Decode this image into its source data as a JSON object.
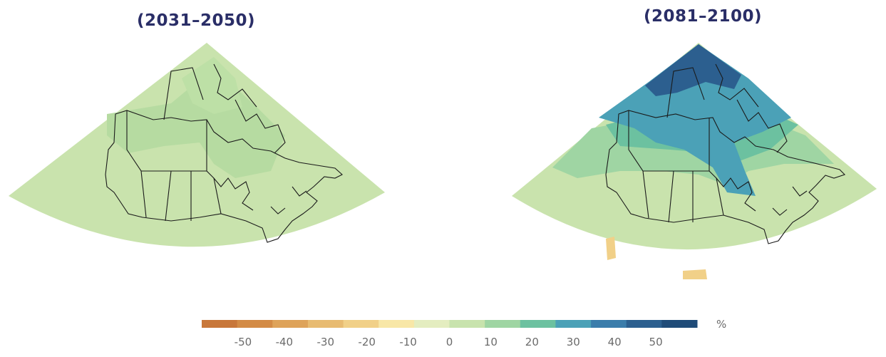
{
  "maps": [
    {
      "title": "(2031–2050)"
    },
    {
      "title": "(2081–2100)"
    }
  ],
  "legend": {
    "unit": "%",
    "ticks": [
      "-50",
      "-40",
      "-30",
      "-20",
      "-10",
      "0",
      "10",
      "20",
      "30",
      "40",
      "50"
    ],
    "min": -60,
    "max": 60,
    "colors": [
      "#c8773a",
      "#d38b46",
      "#dea35a",
      "#e8bb71",
      "#f1d088",
      "#f8e7a7",
      "#e4edc0",
      "#c8e3ad",
      "#9fd5a3",
      "#6cc1a0",
      "#4ba1b7",
      "#3b7dab",
      "#2c5f8f",
      "#1f4b78"
    ]
  }
}
